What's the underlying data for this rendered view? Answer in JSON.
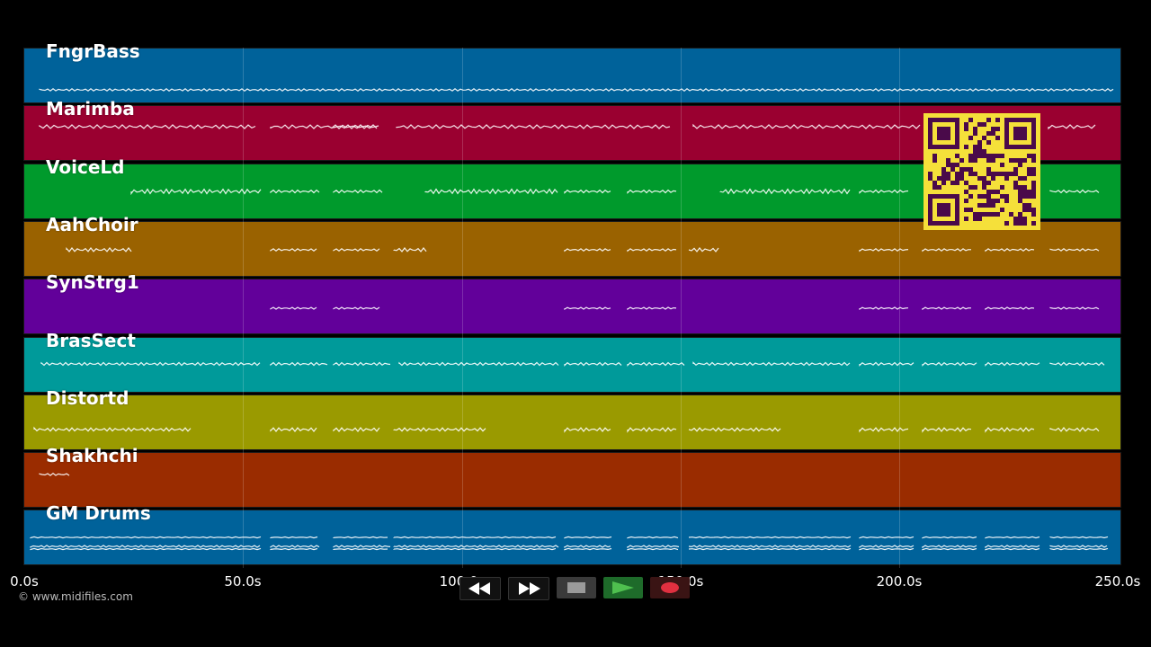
{
  "tracks": [
    {
      "name": "FngrBass",
      "color": "#00629a"
    },
    {
      "name": "Marimba",
      "color": "#9a0030"
    },
    {
      "name": "VoiceLd",
      "color": "#009a2c"
    },
    {
      "name": "AahChoir",
      "color": "#9a6200"
    },
    {
      "name": "SynStrg1",
      "color": "#62009a"
    },
    {
      "name": "BrasSect",
      "color": "#009a9a"
    },
    {
      "name": "Distortd",
      "color": "#9a9a00"
    },
    {
      "name": "Shakhchi",
      "color": "#9a2c00"
    },
    {
      "name": "GM Drums",
      "color": "#00629a"
    }
  ],
  "timeline": {
    "ticks": [
      "0.0s",
      "50.0s",
      "100.0s",
      "150.0s",
      "200.0s",
      "250.0s"
    ]
  },
  "copyright": "© www.midifiles.com",
  "controls": {
    "rewind_icon": "rewind-icon",
    "fast_forward_icon": "fast-forward-icon",
    "stop_icon": "stop-icon",
    "play_icon": "play-icon",
    "record_icon": "record-icon"
  },
  "qr_colors": {
    "fg": "#4a0a4a",
    "bg": "#f5e03a"
  }
}
